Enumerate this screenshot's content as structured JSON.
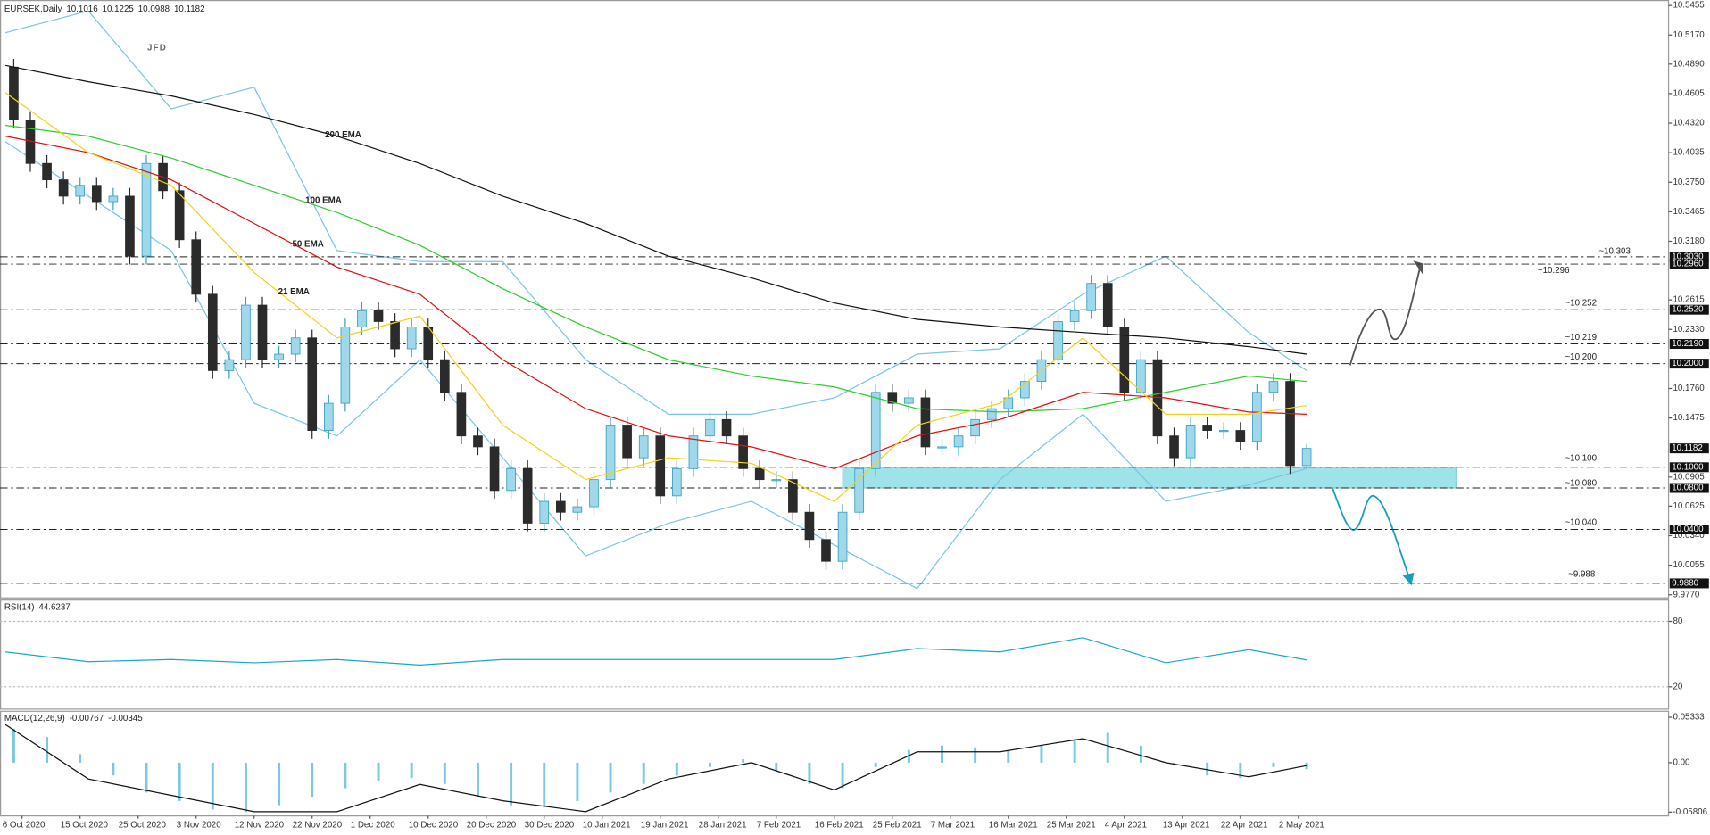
{
  "chart_data": [
    {
      "type": "candlestick",
      "title": "EURSEK,Daily",
      "logo": "JFD",
      "xlim": [
        -0.66,
        200.66
      ],
      "ylim": [
        9.9745,
        10.5508
      ],
      "yticks": [
        10.5455,
        {
          "value": 10.517,
          "label": "10.5170"
        },
        {
          "value": 10.489,
          "label": "10.4890"
        },
        10.4605,
        {
          "value": 10.432,
          "label": "10.4320"
        },
        10.4035,
        {
          "value": 10.375,
          "label": "10.3750"
        },
        10.3465,
        {
          "value": 10.318,
          "label": "10.3180"
        },
        10.2615,
        {
          "value": 10.233,
          "label": "10.2330"
        },
        {
          "value": 10.176,
          "label": "10.1760"
        },
        10.1475,
        10.0905,
        10.0625,
        {
          "value": 10.034,
          "label": "10.0340"
        },
        10.0055,
        {
          "value": 9.977,
          "label": "9.9770"
        }
      ],
      "up_color": "#9fd8ea",
      "down_color": "#2b2b2b",
      "x": [
        1,
        3,
        5,
        7,
        9,
        11,
        13,
        15,
        17,
        19,
        21,
        23,
        25,
        27,
        29,
        31,
        33,
        35,
        37,
        39,
        41,
        43,
        45,
        47,
        49,
        51,
        53,
        55,
        57,
        59,
        61,
        63,
        65,
        67,
        69,
        71,
        73,
        75,
        77,
        79,
        81,
        83,
        85,
        87,
        89,
        91,
        93,
        95,
        97,
        99,
        101,
        103,
        105,
        107,
        109,
        111,
        113,
        115,
        117,
        119,
        121,
        123,
        125,
        127,
        129,
        131,
        133,
        135,
        137,
        139,
        141,
        143,
        145,
        147,
        149,
        151,
        153,
        155,
        157
      ],
      "open": [
        10.486,
        10.4351,
        10.3931,
        10.3773,
        10.3615,
        10.372,
        10.3563,
        10.3615,
        10.3037,
        10.3931,
        10.3668,
        10.3195,
        10.2669,
        10.1933,
        10.2038,
        10.2564,
        10.2038,
        10.2091,
        10.2248,
        10.1355,
        10.1617,
        10.2354,
        10.2511,
        10.2406,
        10.2143,
        10.2354,
        10.2038,
        10.1723,
        10.1302,
        10.1197,
        10.0776,
        10.0987,
        10.0461,
        10.0671,
        10.0566,
        10.0619,
        10.0881,
        10.1407,
        10.1092,
        10.1302,
        10.0724,
        10.0987,
        10.1302,
        10.146,
        10.1302,
        10.0987,
        10.0881,
        10.0881,
        10.0566,
        10.0303,
        10.0093,
        10.0566,
        10.0987,
        10.1723,
        10.1617,
        10.167,
        10.1197,
        10.1197,
        10.1302,
        10.146,
        10.1565,
        10.167,
        10.1828,
        10.2038,
        10.2406,
        10.2511,
        10.2774,
        10.2354,
        10.1723,
        10.2038,
        10.1302,
        10.1092,
        10.1407,
        10.1355,
        10.1355,
        10.125,
        10.1723,
        10.1828,
        10.1016
      ],
      "high": [
        10.494,
        10.4431,
        10.4011,
        10.3853,
        10.38,
        10.38,
        10.3695,
        10.3695,
        10.4011,
        10.4011,
        10.3748,
        10.3275,
        10.2749,
        10.2118,
        10.2644,
        10.2644,
        10.2171,
        10.2328,
        10.2328,
        10.1697,
        10.2434,
        10.2591,
        10.2591,
        10.2486,
        10.2434,
        10.2434,
        10.2118,
        10.1803,
        10.1382,
        10.1277,
        10.1067,
        10.1067,
        10.0751,
        10.0751,
        10.0699,
        10.0961,
        10.1487,
        10.1487,
        10.1382,
        10.1382,
        10.1067,
        10.1382,
        10.154,
        10.154,
        10.1382,
        10.1067,
        10.0961,
        10.0961,
        10.0646,
        10.0383,
        10.0646,
        10.1067,
        10.1803,
        10.1803,
        10.175,
        10.175,
        10.1277,
        10.1382,
        10.154,
        10.1645,
        10.175,
        10.1908,
        10.2118,
        10.2486,
        10.2591,
        10.2854,
        10.2854,
        10.2434,
        10.2118,
        10.2118,
        10.1382,
        10.1487,
        10.1487,
        10.1435,
        10.1435,
        10.1803,
        10.1908,
        10.1908,
        10.1225
      ],
      "low": [
        10.4271,
        10.3851,
        10.3693,
        10.3535,
        10.3535,
        10.3483,
        10.3483,
        10.2957,
        10.2957,
        10.3588,
        10.3115,
        10.2589,
        10.1853,
        10.1853,
        10.1958,
        10.1958,
        10.1958,
        10.2011,
        10.1275,
        10.1275,
        10.1537,
        10.2274,
        10.2326,
        10.2063,
        10.2063,
        10.1958,
        10.1643,
        10.1222,
        10.1117,
        10.0696,
        10.0696,
        10.0381,
        10.0381,
        10.0486,
        10.0486,
        10.0539,
        10.0801,
        10.1012,
        10.1012,
        10.0644,
        10.0644,
        10.0907,
        10.1222,
        10.1222,
        10.0907,
        10.0801,
        10.0801,
        10.0486,
        10.0223,
        10.0013,
        10.0013,
        10.0486,
        10.0907,
        10.1537,
        10.1537,
        10.1117,
        10.1117,
        10.1117,
        10.1222,
        10.138,
        10.1485,
        10.159,
        10.1748,
        10.1958,
        10.2326,
        10.2431,
        10.2274,
        10.1643,
        10.1643,
        10.1222,
        10.1012,
        10.1012,
        10.1275,
        10.1275,
        10.117,
        10.117,
        10.1643,
        10.0936,
        10.0988
      ],
      "close": [
        10.4351,
        10.3931,
        10.3773,
        10.3615,
        10.372,
        10.3563,
        10.3615,
        10.3037,
        10.3931,
        10.3668,
        10.3195,
        10.2669,
        10.1933,
        10.2038,
        10.2564,
        10.2038,
        10.2091,
        10.2248,
        10.1355,
        10.1617,
        10.2354,
        10.2511,
        10.2406,
        10.2143,
        10.2354,
        10.2038,
        10.1723,
        10.1302,
        10.1197,
        10.0776,
        10.0987,
        10.0461,
        10.0671,
        10.0566,
        10.0619,
        10.0881,
        10.1407,
        10.1092,
        10.1302,
        10.0724,
        10.0987,
        10.1302,
        10.146,
        10.1302,
        10.0987,
        10.0881,
        10.0881,
        10.0566,
        10.0303,
        10.0093,
        10.0566,
        10.0987,
        10.1723,
        10.1617,
        10.167,
        10.1197,
        10.1197,
        10.1302,
        10.146,
        10.1565,
        10.167,
        10.1828,
        10.2038,
        10.2406,
        10.2511,
        10.2774,
        10.2354,
        10.1723,
        10.2038,
        10.1302,
        10.1092,
        10.1407,
        10.1355,
        10.1355,
        10.125,
        10.1723,
        10.1828,
        10.1016,
        10.1182
      ],
      "lines_x": [
        0,
        10,
        20,
        30,
        40,
        50,
        60,
        70,
        80,
        90,
        100,
        110,
        120,
        130,
        140,
        150,
        157
      ],
      "lines": [
        {
          "name": "200 EMA",
          "color": "#111111",
          "values": [
            10.4877,
            10.4719,
            10.4583,
            10.4404,
            10.4194,
            10.3931,
            10.3615,
            10.3352,
            10.3037,
            10.2827,
            10.2585,
            10.2427,
            10.2354,
            10.2301,
            10.2248,
            10.2164,
            10.2091
          ]
        },
        {
          "name": "100 EMA",
          "color": "#2fcc2f",
          "values": [
            10.4299,
            10.4194,
            10.3983,
            10.372,
            10.3458,
            10.3142,
            10.2722,
            10.2354,
            10.2038,
            10.188,
            10.1775,
            10.1565,
            10.1533,
            10.1565,
            10.1723,
            10.188,
            10.1828
          ]
        },
        {
          "name": "50 EMA",
          "color": "#dd1111",
          "values": [
            10.4194,
            10.4036,
            10.3773,
            10.3352,
            10.2932,
            10.2669,
            10.2038,
            10.1565,
            10.1302,
            10.1197,
            10.0987,
            10.1302,
            10.146,
            10.1723,
            10.167,
            10.1533,
            10.1512
          ]
        },
        {
          "name": "21 EMA",
          "color": "#f2d21b",
          "values": [
            10.4614,
            10.4036,
            10.372,
            10.2879,
            10.2248,
            10.2459,
            10.1407,
            10.0881,
            10.1092,
            10.1039,
            10.0671,
            10.1407,
            10.1617,
            10.2248,
            10.1512,
            10.1512,
            10.1596
          ]
        }
      ],
      "bands": [
        {
          "color": "#7cc4e4",
          "values": [
            10.5193,
            10.5403,
            10.4457,
            10.4667,
            10.309,
            10.2984,
            10.2984,
            10.2038,
            10.1512,
            10.1512,
            10.167,
            10.2091,
            10.2143,
            10.2669,
            10.3037,
            10.2301,
            10.1933
          ]
        },
        {
          "color": "#7cc4e4",
          "values": [
            10.4141,
            10.3615,
            10.309,
            10.1617,
            10.1302,
            10.2038,
            10.1092,
            10.0145,
            10.0461,
            10.0671,
            10.0251,
            9.983,
            10.0881,
            10.1512,
            10.0671,
            10.0829,
            10.0987
          ]
        }
      ],
      "zone": {
        "from": 10.08,
        "to": 10.1,
        "x": [
          101,
          175
        ],
        "color": "#9fe2ea"
      },
      "levels": [
        {
          "value": 10.303,
          "label": "~10.303",
          "tag": "10.3030",
          "color": "#333333"
        },
        {
          "value": 10.296,
          "label": "~10.296",
          "tag": "10.2960",
          "color": "#333333"
        },
        {
          "value": 10.252,
          "label": "~10.252",
          "tag": "10.2520",
          "color": "#333333"
        },
        {
          "value": 10.219,
          "label": "~10.219",
          "tag": "10.2190",
          "color": "#333333"
        },
        {
          "value": 10.2,
          "label": "~10.200",
          "tag": "10.2000",
          "color": "#333333"
        },
        {
          "value": 10.1,
          "label": "~10.100",
          "tag": "10.1000",
          "color": "#1a9fc0"
        },
        {
          "value": 10.08,
          "label": "~10.080",
          "tag": "10.0800",
          "color": "#1a9fc0"
        },
        {
          "value": 10.04,
          "label": "~10.040",
          "tag": "10.0400",
          "color": "#1a9fc0"
        },
        {
          "value": 9.988,
          "label": "~9.988",
          "tag": "9.9880",
          "color": "#1a9fc0"
        }
      ]
    },
    {
      "type": "line",
      "title": "RSI(14)",
      "color": "#1aa7c8",
      "xlim": [
        -0.66,
        200.66
      ],
      "ylim": [
        0,
        100
      ],
      "yticks": [
        80,
        20
      ],
      "grid": true,
      "x": [
        0,
        10,
        20,
        30,
        40,
        50,
        60,
        70,
        80,
        90,
        100,
        110,
        120,
        130,
        140,
        150,
        157
      ],
      "values": [
        52,
        43,
        45,
        42,
        45,
        40,
        45,
        45,
        45,
        45,
        45,
        55,
        52,
        65,
        42,
        54,
        44.6237
      ]
    },
    {
      "type": "macd",
      "title": "MACD(12,26,9)",
      "xlim": [
        -0.66,
        200.66
      ],
      "ylim": [
        -0.0619,
        0.061
      ],
      "yticks": [
        0.05333,
        {
          "value": 0,
          "label": "0.00"
        },
        -0.05806
      ],
      "histogram": {
        "color": "#7cc8e0",
        "x": [
          1,
          5,
          9,
          13,
          17,
          21,
          25,
          29,
          33,
          37,
          41,
          45,
          49,
          53,
          57,
          61,
          65,
          69,
          73,
          77,
          81,
          85,
          89,
          93,
          97,
          101,
          105,
          109,
          113,
          117,
          121,
          125,
          129,
          133,
          137,
          141,
          145,
          149,
          153,
          157
        ],
        "values": [
          0.04,
          0.03,
          0.01,
          -0.015,
          -0.035,
          -0.045,
          -0.055,
          -0.058,
          -0.05,
          -0.04,
          -0.03,
          -0.022,
          -0.018,
          -0.025,
          -0.04,
          -0.05,
          -0.052,
          -0.045,
          -0.035,
          -0.025,
          -0.015,
          -0.005,
          0.004,
          -0.01,
          -0.025,
          -0.03,
          -0.005,
          0.015,
          0.02,
          0.018,
          0.015,
          0.02,
          0.028,
          0.035,
          0.02,
          0,
          -0.015,
          -0.018,
          -0.005,
          -0.00767
        ]
      },
      "signal": {
        "color": "#111111",
        "x": [
          0,
          10,
          20,
          30,
          40,
          50,
          60,
          70,
          80,
          90,
          100,
          110,
          120,
          130,
          140,
          150,
          157
        ],
        "values": [
          0.0448,
          -0.0192,
          -0.0384,
          -0.0576,
          -0.0576,
          -0.0256,
          -0.0448,
          -0.0576,
          -0.0192,
          0,
          -0.032,
          0.0128,
          0.0128,
          0.0282,
          0,
          -0.0166,
          -0.00345
        ]
      },
      "xticks": [
        {
          "value": 2,
          "label": "6 Oct 2020"
        },
        {
          "value": 9,
          "label": "15 Oct 2020"
        },
        {
          "value": 16,
          "label": "25 Oct 2020"
        },
        {
          "value": 23,
          "label": "3 Nov 2020"
        },
        {
          "value": 30,
          "label": "12 Nov 2020"
        },
        {
          "value": 37,
          "label": "22 Nov 2020"
        },
        {
          "value": 44,
          "label": "1 Dec 2020"
        },
        {
          "value": 51,
          "label": "10 Dec 2020"
        },
        {
          "value": 58,
          "label": "20 Dec 2020"
        },
        {
          "value": 65,
          "label": "30 Dec 2020"
        },
        {
          "value": 72,
          "label": "10 Jan 2021"
        },
        {
          "value": 79,
          "label": "19 Jan 2021"
        },
        {
          "value": 86,
          "label": "28 Jan 2021"
        },
        {
          "value": 93,
          "label": "7 Feb 2021"
        },
        {
          "value": 100,
          "label": "16 Feb 2021"
        },
        {
          "value": 107,
          "label": "25 Feb 2021"
        },
        {
          "value": 114,
          "label": "7 Mar 2021"
        },
        {
          "value": 121,
          "label": "16 Mar 2021"
        },
        {
          "value": 128,
          "label": "25 Mar 2021"
        },
        {
          "value": 135,
          "label": "4 Apr 2021"
        },
        {
          "value": 142,
          "label": "13 Apr 2021"
        },
        {
          "value": 149,
          "label": "22 Apr 2021"
        },
        {
          "value": 156,
          "label": "2 May 2021"
        }
      ]
    }
  ]
}
